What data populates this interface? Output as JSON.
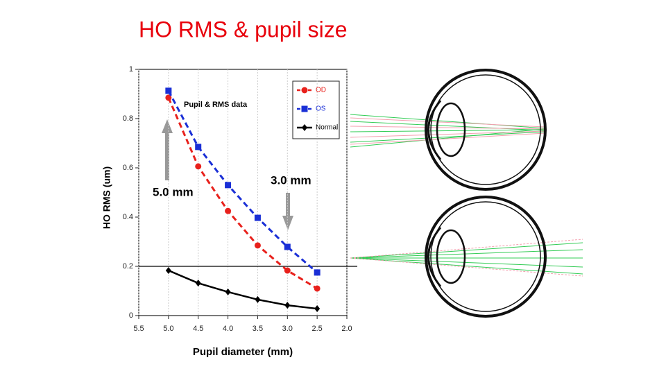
{
  "slide": {
    "title": "HO RMS & pupil size"
  },
  "chart_data": {
    "type": "line",
    "x_label": "Pupil diameter (mm)",
    "y_label": "HO RMS (um)",
    "annotations": [
      "Pupil & RMS data",
      "5.0 mm",
      "3.0 mm"
    ],
    "x": [
      5.0,
      4.5,
      4.0,
      3.5,
      3.0,
      2.5
    ],
    "series": [
      {
        "name": "OD",
        "color": "#e8211c",
        "marker": "circle",
        "dashed": true,
        "values": [
          0.885,
          0.606,
          0.425,
          0.285,
          0.183,
          0.11
        ]
      },
      {
        "name": "OS",
        "color": "#1a2fd6",
        "marker": "square",
        "dashed": true,
        "values": [
          0.913,
          0.685,
          0.53,
          0.397,
          0.279,
          0.175
        ]
      },
      {
        "name": "Normal",
        "color": "#000000",
        "marker": "diamond",
        "dashed": false,
        "values": [
          0.183,
          0.132,
          0.096,
          0.065,
          0.042,
          0.028
        ]
      }
    ],
    "xlim": [
      5.5,
      2.0
    ],
    "xticks": [
      5.5,
      {
        "value": 5,
        "label": "5.0"
      },
      4.5,
      {
        "value": 4,
        "label": "4.0"
      },
      3.5,
      {
        "value": 3,
        "label": "3.0"
      },
      2.5,
      {
        "value": 2,
        "label": "2.0"
      }
    ],
    "ylim": [
      0,
      1
    ],
    "yticks": [
      0,
      0.2,
      0.4,
      0.6,
      0.8,
      1
    ],
    "hline": 0.2,
    "grid": true
  }
}
